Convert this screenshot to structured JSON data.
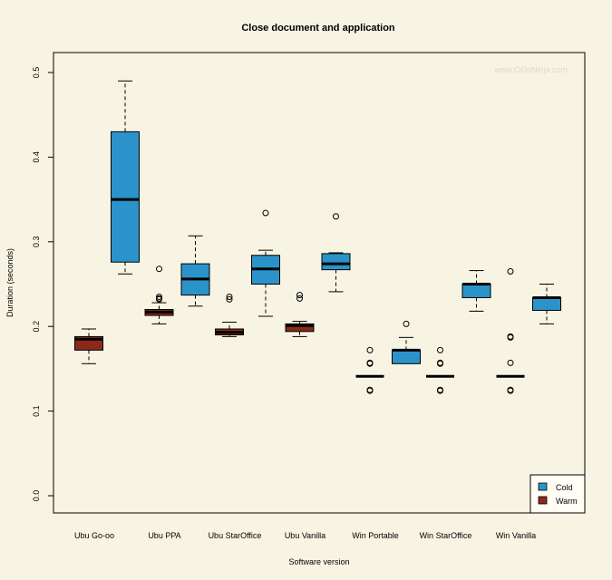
{
  "chart_data": {
    "type": "boxplot",
    "title": "Close document and application",
    "xlabel": "Software version",
    "ylabel": "Duration (seconds)",
    "watermark": "www.OOoNinja.com",
    "ylim": [
      -0.02,
      0.52
    ],
    "yticks": [
      "0.0",
      "0.1",
      "0.2",
      "0.3",
      "0.4",
      "0.5"
    ],
    "categories": [
      "Ubu Go-oo",
      "Ubu PPA",
      "Ubu StarOffice",
      "Ubu Vanilla",
      "Win Portable",
      "Win StarOffice",
      "Win Vanilla"
    ],
    "legend": {
      "position": "bottom-right",
      "entries": [
        "Cold",
        "Warm"
      ]
    },
    "colors": {
      "Cold": "#2b93c9",
      "Warm": "#8b2a1a"
    },
    "series": [
      {
        "name": "Warm",
        "boxes": [
          {
            "min": 0.156,
            "q1": 0.172,
            "median": 0.185,
            "q3": 0.188,
            "max": 0.197,
            "outliers": []
          },
          {
            "min": 0.203,
            "q1": 0.213,
            "median": 0.217,
            "q3": 0.22,
            "max": 0.228,
            "outliers": [
              0.268,
              0.235,
              0.233,
              0.232
            ]
          },
          {
            "min": 0.188,
            "q1": 0.19,
            "median": 0.193,
            "q3": 0.197,
            "max": 0.205,
            "outliers": [
              0.235,
              0.232
            ]
          },
          {
            "min": 0.188,
            "q1": 0.194,
            "median": 0.201,
            "q3": 0.203,
            "max": 0.206,
            "outliers": [
              0.237,
              0.233
            ]
          },
          {
            "min": 0.141,
            "q1": 0.141,
            "median": 0.141,
            "q3": 0.141,
            "max": 0.141,
            "outliers": [
              0.172,
              0.157,
              0.156,
              0.125,
              0.124
            ]
          },
          {
            "min": 0.141,
            "q1": 0.141,
            "median": 0.141,
            "q3": 0.141,
            "max": 0.141,
            "outliers": [
              0.172,
              0.157,
              0.156,
              0.125,
              0.124
            ]
          },
          {
            "min": 0.141,
            "q1": 0.141,
            "median": 0.141,
            "q3": 0.141,
            "max": 0.141,
            "outliers": [
              0.265,
              0.188,
              0.187,
              0.157,
              0.125,
              0.124
            ]
          }
        ]
      },
      {
        "name": "Cold",
        "boxes": [
          {
            "min": 0.262,
            "q1": 0.276,
            "median": 0.35,
            "q3": 0.43,
            "max": 0.49,
            "outliers": []
          },
          {
            "min": 0.224,
            "q1": 0.237,
            "median": 0.256,
            "q3": 0.274,
            "max": 0.307,
            "outliers": []
          },
          {
            "min": 0.212,
            "q1": 0.25,
            "median": 0.268,
            "q3": 0.284,
            "max": 0.29,
            "outliers": [
              0.334
            ]
          },
          {
            "min": 0.241,
            "q1": 0.267,
            "median": 0.274,
            "q3": 0.286,
            "max": 0.287,
            "outliers": [
              0.33
            ]
          },
          {
            "min": 0.156,
            "q1": 0.156,
            "median": 0.172,
            "q3": 0.172,
            "max": 0.187,
            "outliers": [
              0.203
            ]
          },
          {
            "min": 0.218,
            "q1": 0.234,
            "median": 0.25,
            "q3": 0.25,
            "max": 0.266,
            "outliers": []
          },
          {
            "min": 0.203,
            "q1": 0.219,
            "median": 0.234,
            "q3": 0.234,
            "max": 0.25,
            "outliers": []
          }
        ]
      }
    ]
  }
}
